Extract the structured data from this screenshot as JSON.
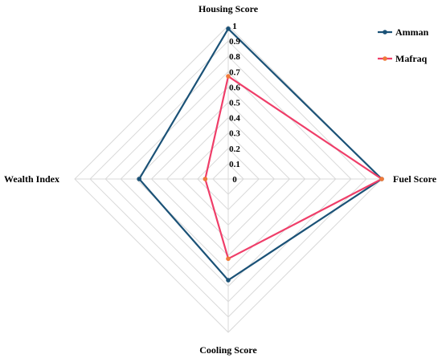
{
  "chart_data": {
    "type": "radar",
    "axes": [
      "Housing Score",
      "Fuel Score",
      "Cooling Score",
      "Wealth Index"
    ],
    "ticks": [
      "0",
      "0.1",
      "0.2",
      "0.3",
      "0.4",
      "0.5",
      "0.6",
      "0.7",
      "0.8",
      "0.9",
      "1"
    ],
    "range": [
      0,
      1
    ],
    "grid": true,
    "legend_position": "top-right",
    "series": [
      {
        "name": "Amman",
        "values": [
          0.98,
          1.0,
          0.66,
          0.58
        ],
        "color": "#1b5277"
      },
      {
        "name": "Mafraq",
        "values": [
          0.67,
          1.0,
          0.52,
          0.15
        ],
        "color": "#ef3e69",
        "marker_color": "#ef7a3a"
      }
    ]
  }
}
